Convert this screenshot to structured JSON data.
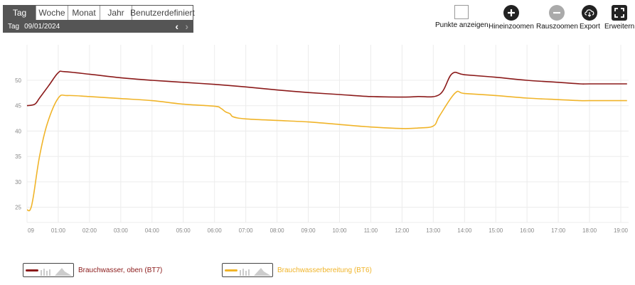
{
  "period": {
    "tabs": [
      {
        "label": "Tag",
        "active": true
      },
      {
        "label": "Woche",
        "active": false
      },
      {
        "label": "Monat",
        "active": false
      },
      {
        "label": "Jahr",
        "active": false
      },
      {
        "label": "Benutzerdefiniert",
        "active": false
      }
    ],
    "date_label": "Tag",
    "date_value": "09/01/2024"
  },
  "toolbar": {
    "points_label": "Punkte anzeigen",
    "zoom_in_label": "Hineinzoomen",
    "zoom_out_label": "Rauszoomen",
    "export_label": "Export",
    "expand_label": "Erweitern"
  },
  "icons": {
    "points": "checkbox-icon",
    "zoom_in": "plus-circle-icon",
    "zoom_out": "minus-circle-icon",
    "export": "cloud-download-icon",
    "expand": "fullscreen-icon",
    "prev": "chevron-left-icon",
    "next": "chevron-right-icon"
  },
  "colors": {
    "bt7": "#8b1a1a",
    "bt6": "#f0b429",
    "grid": "#ececec"
  },
  "chart_data": {
    "type": "line",
    "ylim": [
      22,
      57
    ],
    "yticks": [
      25,
      30,
      35,
      40,
      45,
      50
    ],
    "xlim": [
      0,
      19.25
    ],
    "xticks": [
      0,
      1,
      2,
      3,
      4,
      5,
      6,
      7,
      8,
      9,
      10,
      11,
      12,
      13,
      14,
      15,
      16,
      17,
      18,
      19
    ],
    "xticklabels": [
      "09",
      "01:00",
      "02:00",
      "03:00",
      "04:00",
      "05:00",
      "06:00",
      "07:00",
      "08:00",
      "09:00",
      "10:00",
      "11:00",
      "12:00",
      "13:00",
      "14:00",
      "15:00",
      "16:00",
      "17:00",
      "18:00",
      "19:00"
    ],
    "grid": true,
    "legend_position": "bottom-left",
    "series": [
      {
        "name": "Brauchwasser, oben (BT7)",
        "color": "#8b1a1a",
        "x": [
          0,
          0.25,
          0.4,
          0.7,
          1.0,
          1.2,
          2.0,
          3.0,
          4.0,
          5.0,
          6.0,
          7.0,
          8.0,
          9.0,
          10.0,
          11.0,
          12.0,
          12.5,
          13.2,
          13.6,
          14.0,
          15.0,
          16.0,
          17.0,
          17.7,
          18.0,
          19.0,
          19.2
        ],
        "y": [
          45,
          45.3,
          46.5,
          49,
          51.5,
          51.7,
          51.2,
          50.5,
          50,
          49.6,
          49.2,
          48.7,
          48.1,
          47.6,
          47.2,
          46.8,
          46.7,
          46.8,
          47.2,
          51.3,
          51.1,
          50.6,
          50,
          49.6,
          49.3,
          49.3,
          49.3,
          49.3
        ]
      },
      {
        "name": "Brauchwasserbereitung (BT6)",
        "color": "#f0b429",
        "x": [
          0,
          0.1,
          0.2,
          0.4,
          0.65,
          1.0,
          1.3,
          2.0,
          3.0,
          4.0,
          5.0,
          6.0,
          6.2,
          6.35,
          6.5,
          6.6,
          7.0,
          8.0,
          9.0,
          10.0,
          11.0,
          12.0,
          12.5,
          13.0,
          13.2,
          13.7,
          14.0,
          15.0,
          16.0,
          17.0,
          17.7,
          18.0,
          19.0,
          19.2
        ],
        "y": [
          24.5,
          24.5,
          27,
          35,
          41.5,
          46.5,
          47,
          46.8,
          46.4,
          46,
          45.3,
          44.9,
          44.5,
          43.8,
          43.4,
          42.8,
          42.4,
          42.1,
          41.8,
          41.3,
          40.8,
          40.5,
          40.6,
          41,
          43,
          47.5,
          47.4,
          47,
          46.5,
          46.2,
          46,
          46,
          46,
          46
        ]
      }
    ]
  }
}
